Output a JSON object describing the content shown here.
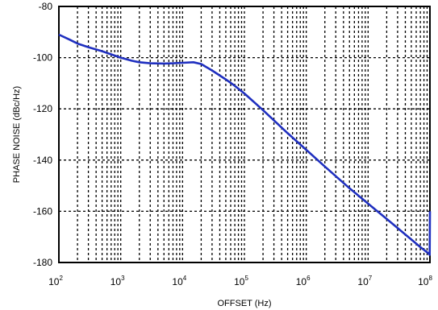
{
  "chart_data": {
    "type": "line",
    "title": "",
    "xlabel": "OFFSET (Hz)",
    "ylabel": "PHASE NOISE (dBc/Hz)",
    "x_scale": "log",
    "xlim": [
      100,
      100000000
    ],
    "ylim": [
      -180,
      -80
    ],
    "x_ticks": [
      {
        "base": "10",
        "exp": "2",
        "value": 100
      },
      {
        "base": "10",
        "exp": "3",
        "value": 1000
      },
      {
        "base": "10",
        "exp": "4",
        "value": 10000
      },
      {
        "base": "10",
        "exp": "5",
        "value": 100000
      },
      {
        "base": "10",
        "exp": "6",
        "value": 1000000
      },
      {
        "base": "10",
        "exp": "7",
        "value": 10000000
      },
      {
        "base": "10",
        "exp": "8",
        "value": 100000000
      }
    ],
    "y_ticks": [
      "-80",
      "-100",
      "-120",
      "-140",
      "-160",
      "-180"
    ],
    "y_tick_values": [
      -80,
      -100,
      -120,
      -140,
      -160,
      -180
    ],
    "grid": true,
    "line_color": "#1f2fbf",
    "series": [
      {
        "x": [
          100,
          150,
          200,
          300,
          500,
          700,
          1000,
          1500,
          2000,
          3000,
          5000,
          7000,
          10000,
          15000,
          20000,
          30000,
          50000,
          70000,
          100000,
          200000,
          500000,
          1000000,
          2000000,
          5000000,
          10000000,
          20000000,
          50000000,
          70000000,
          90000000,
          95000000,
          99000000,
          100000000
        ],
        "y": [
          -91,
          -93,
          -94.5,
          -95.9,
          -97.5,
          -98.7,
          -100,
          -101.2,
          -101.8,
          -102.2,
          -102.3,
          -102.2,
          -102,
          -101.8,
          -102.5,
          -105,
          -108.5,
          -111,
          -114,
          -120.5,
          -129.5,
          -136,
          -142.5,
          -151,
          -157,
          -163,
          -171,
          -174,
          -176,
          -176.5,
          -177,
          -160
        ]
      }
    ]
  }
}
